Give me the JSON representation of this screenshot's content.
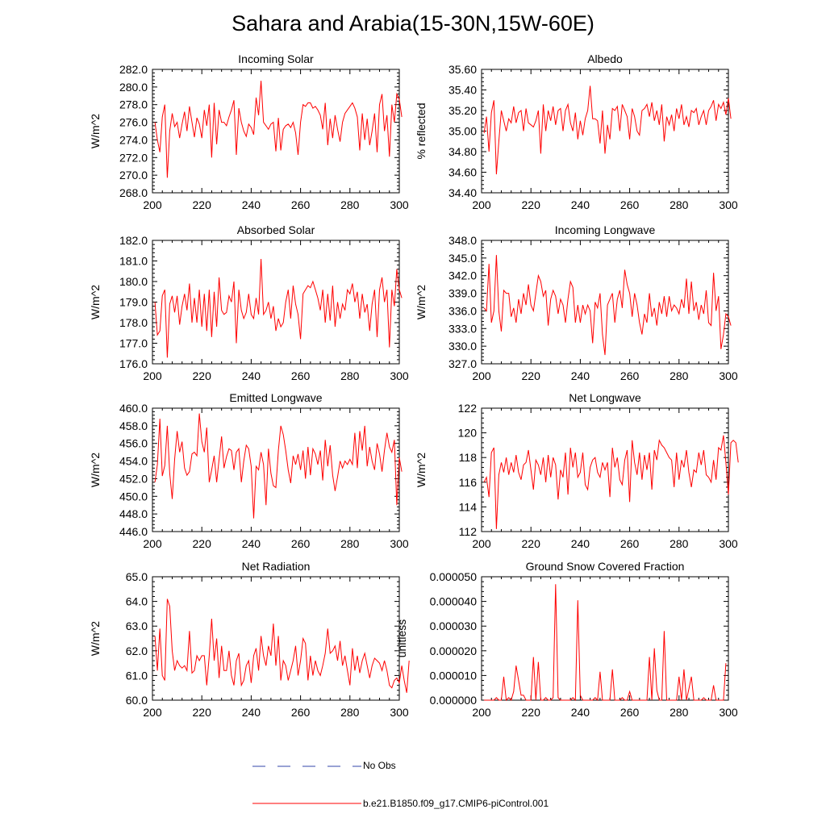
{
  "figure_title": "Sahara and Arabia(15-30N,15W-60E)",
  "legend": {
    "obs_label": "No Obs",
    "obs_color": "#3344aa",
    "model_label": "b.e21.B1850.f09_g17.CMIP6-piControl.001",
    "model_color": "#ff0000"
  },
  "chart_data": [
    {
      "type": "line",
      "title": "Incoming Solar",
      "xlabel": "",
      "ylabel": "W/m^2",
      "xlim": [
        200,
        300
      ],
      "ylim": [
        268,
        282
      ],
      "xticks": [
        200,
        220,
        240,
        260,
        280,
        300
      ],
      "yticks": [
        268,
        270,
        272,
        274,
        276,
        278,
        280,
        282
      ],
      "ytick_labels": [
        "268.0",
        "270.0",
        "272.0",
        "274.0",
        "276.0",
        "278.0",
        "280.0",
        "282.0"
      ],
      "x_start": 201,
      "values": [
        276.0,
        274.0,
        272.6,
        276.6,
        278.0,
        269.7,
        275.0,
        277.0,
        275.5,
        276.0,
        274.2,
        275.8,
        277.2,
        275.0,
        277.8,
        276.0,
        274.3,
        276.5,
        275.8,
        274.2,
        277.4,
        275.6,
        278.0,
        272.0,
        278.2,
        273.5,
        277.4,
        276.0,
        276.0,
        275.6,
        276.6,
        277.4,
        278.5,
        272.3,
        277.6,
        276.0,
        275.0,
        274.4,
        275.8,
        275.4,
        274.6,
        278.8,
        276.8,
        280.7,
        276.0,
        275.6,
        275.2,
        275.8,
        276.0,
        272.7,
        276.5,
        272.8,
        275.2,
        275.6,
        275.8,
        275.4,
        276.0,
        274.8,
        272.3,
        276.0,
        278.0,
        277.8,
        278.2,
        278.2,
        277.6,
        277.8,
        277.4,
        276.8,
        275.2,
        278.2,
        273.4,
        276.4,
        274.2,
        276.8,
        275.2,
        273.8,
        276.0,
        277.0,
        277.4,
        277.8,
        278.2,
        277.6,
        276.6,
        272.8,
        277.0,
        274.0,
        276.4,
        273.4,
        275.0,
        277.0,
        272.6,
        278.0,
        279.2,
        275.0,
        276.8,
        272.1,
        278.0,
        276.0,
        279.2,
        278.6,
        276.6
      ]
    },
    {
      "type": "line",
      "title": "Albedo",
      "xlabel": "",
      "ylabel": "% reflected",
      "xlim": [
        200,
        300
      ],
      "ylim": [
        34.4,
        35.6
      ],
      "xticks": [
        200,
        220,
        240,
        260,
        280,
        300
      ],
      "yticks": [
        34.4,
        34.6,
        34.8,
        35.0,
        35.2,
        35.4,
        35.6
      ],
      "ytick_labels": [
        "34.40",
        "34.60",
        "34.80",
        "35.00",
        "35.20",
        "35.40",
        "35.60"
      ],
      "x_start": 201,
      "values": [
        34.98,
        35.14,
        34.8,
        35.18,
        35.3,
        34.58,
        34.9,
        35.2,
        35.1,
        35.0,
        35.12,
        35.08,
        35.24,
        35.08,
        35.18,
        35.2,
        35.0,
        35.22,
        35.08,
        35.06,
        35.04,
        35.1,
        35.2,
        34.78,
        35.26,
        35.0,
        35.2,
        35.1,
        35.24,
        35.06,
        35.2,
        35.22,
        35.0,
        35.2,
        35.26,
        35.08,
        35.0,
        35.18,
        34.92,
        35.1,
        34.96,
        35.12,
        35.2,
        35.44,
        35.12,
        35.12,
        35.1,
        34.88,
        35.2,
        34.78,
        35.06,
        34.92,
        35.22,
        35.2,
        35.24,
        35.0,
        35.26,
        35.2,
        35.14,
        34.92,
        35.22,
        35.14,
        35.0,
        34.96,
        35.2,
        35.22,
        35.26,
        35.14,
        35.28,
        35.1,
        35.2,
        35.06,
        35.26,
        34.9,
        35.14,
        35.06,
        35.16,
        35.0,
        35.22,
        35.12,
        35.26,
        35.06,
        35.14,
        35.04,
        35.2,
        35.18,
        35.22,
        35.06,
        35.14,
        35.2,
        35.06,
        35.2,
        35.24,
        35.3,
        35.1,
        35.26,
        35.22,
        35.28,
        35.16,
        35.32,
        35.12
      ]
    },
    {
      "type": "line",
      "title": "Absorbed Solar",
      "xlabel": "",
      "ylabel": "W/m^2",
      "xlim": [
        200,
        300
      ],
      "ylim": [
        176,
        182
      ],
      "xticks": [
        200,
        220,
        240,
        260,
        280,
        300
      ],
      "yticks": [
        176,
        177,
        178,
        179,
        180,
        181,
        182
      ],
      "ytick_labels": [
        "176.0",
        "177.0",
        "178.0",
        "179.0",
        "180.0",
        "181.0",
        "182.0"
      ],
      "x_start": 201,
      "values": [
        179.0,
        177.4,
        177.6,
        179.3,
        179.6,
        176.3,
        178.9,
        179.3,
        178.5,
        179.3,
        177.9,
        178.8,
        179.4,
        178.6,
        179.9,
        178.0,
        179.2,
        178.0,
        179.6,
        177.8,
        179.4,
        177.6,
        179.6,
        177.3,
        179.5,
        177.8,
        180.2,
        178.6,
        178.4,
        178.5,
        179.3,
        179.0,
        180.0,
        177.0,
        179.6,
        178.6,
        178.2,
        178.5,
        179.4,
        178.4,
        178.2,
        179.2,
        178.4,
        181.1,
        178.4,
        178.6,
        179.0,
        178.2,
        178.8,
        177.6,
        178.2,
        177.8,
        178.0,
        179.0,
        179.6,
        178.2,
        179.8,
        178.9,
        178.4,
        177.2,
        179.4,
        179.6,
        179.8,
        179.7,
        180.0,
        179.6,
        179.2,
        178.6,
        179.6,
        178.0,
        179.4,
        178.1,
        179.8,
        177.8,
        179.0,
        178.2,
        178.9,
        178.6,
        179.6,
        179.4,
        179.9,
        179.0,
        179.5,
        178.2,
        179.4,
        178.5,
        178.9,
        177.6,
        178.9,
        179.6,
        177.3,
        179.6,
        180.2,
        179.0,
        179.6,
        176.8,
        179.6,
        178.8,
        180.6,
        179.6,
        179.2
      ]
    },
    {
      "type": "line",
      "title": "Incoming Longwave",
      "xlabel": "",
      "ylabel": "W/m^2",
      "xlim": [
        200,
        300
      ],
      "ylim": [
        327,
        348
      ],
      "xticks": [
        200,
        220,
        240,
        260,
        280,
        300
      ],
      "yticks": [
        327,
        330,
        333,
        336,
        339,
        342,
        345,
        348
      ],
      "ytick_labels": [
        "327.0",
        "330.0",
        "333.0",
        "336.0",
        "339.0",
        "342.0",
        "345.0",
        "348.0"
      ],
      "x_start": 201,
      "values": [
        336.5,
        336.0,
        344.0,
        334.0,
        336.0,
        345.5,
        336.0,
        332.5,
        339.5,
        339.0,
        339.0,
        335.0,
        336.5,
        334.0,
        338.0,
        335.5,
        339.0,
        337.0,
        340.5,
        337.0,
        336.0,
        339.0,
        342.0,
        341.0,
        338.5,
        339.5,
        333.5,
        338.0,
        339.5,
        338.5,
        335.5,
        338.0,
        337.0,
        334.0,
        338.0,
        341.0,
        340.0,
        334.0,
        337.0,
        334.0,
        337.0,
        335.5,
        337.0,
        336.0,
        330.5,
        337.5,
        336.5,
        339.0,
        332.0,
        328.5,
        337.0,
        338.0,
        339.0,
        334.0,
        338.0,
        339.5,
        336.5,
        343.0,
        340.5,
        339.0,
        335.0,
        339.0,
        337.0,
        334.0,
        332.0,
        335.5,
        334.0,
        339.0,
        335.0,
        336.5,
        333.5,
        337.5,
        335.5,
        338.5,
        335.0,
        338.5,
        336.0,
        337.0,
        336.5,
        335.5,
        338.0,
        336.5,
        341.5,
        335.5,
        341.0,
        336.0,
        337.5,
        334.5,
        337.0,
        335.5,
        339.5,
        334.0,
        333.5,
        342.5,
        336.0,
        338.5,
        329.5,
        332.0,
        335.5,
        335.0,
        333.5
      ]
    },
    {
      "type": "line",
      "title": "Emitted Longwave",
      "xlabel": "",
      "ylabel": "W/m^2",
      "xlim": [
        200,
        300
      ],
      "ylim": [
        446,
        460
      ],
      "xticks": [
        200,
        220,
        240,
        260,
        280,
        300
      ],
      "yticks": [
        446,
        448,
        450,
        452,
        454,
        456,
        458,
        460
      ],
      "ytick_labels": [
        "446.0",
        "448.0",
        "450.0",
        "452.0",
        "454.0",
        "456.0",
        "458.0",
        "460.0"
      ],
      "x_start": 201,
      "values": [
        451.6,
        453.6,
        458.8,
        452.3,
        453.5,
        458.0,
        452.6,
        449.7,
        454.2,
        457.4,
        455.0,
        456.2,
        453.2,
        452.4,
        452.8,
        454.8,
        455.0,
        454.6,
        459.4,
        456.2,
        455.0,
        457.8,
        451.6,
        453.0,
        454.6,
        451.6,
        454.2,
        456.8,
        453.2,
        454.5,
        455.4,
        455.2,
        453.0,
        455.0,
        455.4,
        451.6,
        454.0,
        455.8,
        455.4,
        453.4,
        447.5,
        453.4,
        453.0,
        455.0,
        453.6,
        449.0,
        455.4,
        452.6,
        451.2,
        451.0,
        455.2,
        458.0,
        457.0,
        455.2,
        453.0,
        451.5,
        454.6,
        453.6,
        454.8,
        453.0,
        455.2,
        452.0,
        455.6,
        452.4,
        455.4,
        454.8,
        453.6,
        455.2,
        451.8,
        456.4,
        453.4,
        455.8,
        452.4,
        450.6,
        452.2,
        454.0,
        453.2,
        454.0,
        453.6,
        454.2,
        453.6,
        457.2,
        453.2,
        457.4,
        455.2,
        458.0,
        453.4,
        455.6,
        454.0,
        453.0,
        456.0,
        454.8,
        452.8,
        455.2,
        457.2,
        455.6,
        455.0,
        456.4,
        449.0,
        454.4,
        452.8
      ]
    },
    {
      "type": "line",
      "title": "Net Longwave",
      "xlabel": "",
      "ylabel": "W/m^2",
      "xlim": [
        200,
        300
      ],
      "ylim": [
        112,
        122
      ],
      "xticks": [
        200,
        220,
        240,
        260,
        280,
        300
      ],
      "yticks": [
        112,
        114,
        116,
        118,
        120,
        122
      ],
      "ytick_labels": [
        "112",
        "114",
        "116",
        "118",
        "120",
        "122"
      ],
      "x_start": 201,
      "values": [
        116.0,
        116.4,
        114.8,
        118.4,
        118.8,
        112.2,
        116.6,
        117.6,
        116.8,
        118.0,
        116.6,
        117.6,
        116.8,
        118.2,
        116.8,
        116.2,
        117.4,
        117.6,
        118.6,
        117.0,
        115.4,
        117.8,
        117.4,
        116.6,
        118.0,
        116.0,
        118.2,
        116.4,
        118.0,
        117.4,
        114.6,
        117.0,
        116.4,
        118.4,
        115.0,
        118.8,
        117.2,
        118.4,
        116.4,
        116.8,
        118.4,
        115.8,
        115.4,
        117.2,
        117.8,
        118.0,
        116.8,
        116.4,
        117.6,
        117.0,
        117.6,
        114.8,
        118.8,
        117.2,
        118.0,
        116.2,
        115.8,
        117.8,
        118.6,
        114.4,
        119.4,
        117.6,
        116.6,
        118.4,
        116.2,
        118.2,
        117.0,
        118.4,
        115.4,
        118.6,
        117.8,
        119.4,
        119.0,
        118.8,
        118.4,
        118.0,
        117.8,
        115.6,
        118.4,
        116.2,
        117.8,
        117.2,
        118.6,
        116.8,
        115.6,
        117.0,
        116.8,
        118.4,
        117.4,
        118.6,
        116.6,
        116.4,
        116.0,
        117.8,
        116.2,
        118.8,
        118.6,
        119.8,
        117.6,
        115.0,
        119.2,
        119.4,
        119.2,
        117.6
      ]
    },
    {
      "type": "line",
      "title": "Net Radiation",
      "xlabel": "",
      "ylabel": "W/m^2",
      "xlim": [
        200,
        300
      ],
      "ylim": [
        60,
        65
      ],
      "xticks": [
        200,
        220,
        240,
        260,
        280,
        300
      ],
      "yticks": [
        60,
        61,
        62,
        63,
        64,
        65
      ],
      "ytick_labels": [
        "60.0",
        "61.0",
        "62.0",
        "63.0",
        "64.0",
        "65.0"
      ],
      "x_start": 201,
      "values": [
        62.6,
        61.2,
        62.9,
        61.0,
        60.8,
        64.1,
        63.8,
        62.0,
        61.2,
        61.6,
        61.4,
        61.3,
        61.4,
        61.2,
        62.8,
        61.1,
        61.2,
        61.8,
        61.6,
        61.8,
        61.8,
        60.6,
        61.8,
        63.3,
        61.6,
        62.5,
        60.9,
        62.2,
        61.2,
        61.2,
        62.0,
        61.0,
        60.6,
        61.6,
        61.9,
        60.6,
        60.8,
        61.4,
        61.6,
        60.7,
        61.8,
        62.1,
        61.2,
        62.6,
        61.8,
        61.4,
        62.2,
        61.8,
        63.1,
        61.4,
        62.6,
        60.8,
        61.6,
        61.4,
        60.8,
        61.2,
        61.6,
        62.2,
        61.0,
        61.6,
        62.5,
        62.3,
        60.8,
        61.8,
        61.0,
        61.6,
        61.2,
        61.0,
        61.4,
        61.9,
        62.9,
        61.9,
        62.0,
        62.2,
        61.6,
        62.4,
        61.4,
        61.8,
        61.2,
        60.6,
        62.1,
        61.2,
        61.8,
        61.1,
        61.6,
        61.9,
        61.4,
        60.9,
        61.4,
        61.7,
        61.6,
        61.5,
        61.2,
        61.6,
        61.2,
        60.6,
        60.5,
        60.8,
        60.9,
        60.7,
        61.4,
        60.8,
        60.3,
        61.6
      ]
    },
    {
      "type": "line",
      "title": "Ground Snow Covered Fraction",
      "xlabel": "",
      "ylabel": "unitless",
      "xlim": [
        200,
        300
      ],
      "ylim": [
        0,
        5e-05
      ],
      "xticks": [
        200,
        220,
        240,
        260,
        280,
        300
      ],
      "yticks": [
        0,
        1e-05,
        2e-05,
        3e-05,
        4e-05,
        5e-05
      ],
      "ytick_labels": [
        "0.000000",
        "0.000010",
        "0.000020",
        "0.000030",
        "0.000040",
        "0.000050"
      ],
      "x_start": 201,
      "values": [
        0,
        0,
        0,
        0,
        0,
        1e-06,
        0,
        0,
        9.5e-06,
        0,
        1e-06,
        0,
        3.5e-06,
        1.4e-05,
        8e-06,
        2e-06,
        2e-06,
        0,
        0,
        0,
        1.75e-05,
        0,
        1.55e-05,
        0,
        0,
        1e-06,
        0,
        0,
        1e-06,
        4.7e-05,
        1e-06,
        0,
        0,
        0,
        0,
        0,
        1e-06,
        0,
        4.05e-05,
        2e-06,
        0,
        0,
        0,
        0,
        0,
        1e-06,
        0,
        1.15e-05,
        0,
        0,
        0,
        0,
        1.25e-05,
        0,
        0,
        0,
        1e-06,
        0,
        0,
        3.5e-06,
        0,
        0,
        0,
        0,
        0,
        0,
        0,
        1.75e-05,
        0,
        2.1e-05,
        4e-06,
        0,
        0,
        2.8e-05,
        0,
        0,
        0,
        0,
        0,
        9.5e-06,
        0,
        1.25e-05,
        0,
        4.5e-06,
        9.5e-06,
        0,
        0,
        0,
        0,
        1e-06,
        0,
        0,
        0,
        6e-06,
        0,
        0,
        0,
        0,
        1.5e-05
      ]
    }
  ]
}
